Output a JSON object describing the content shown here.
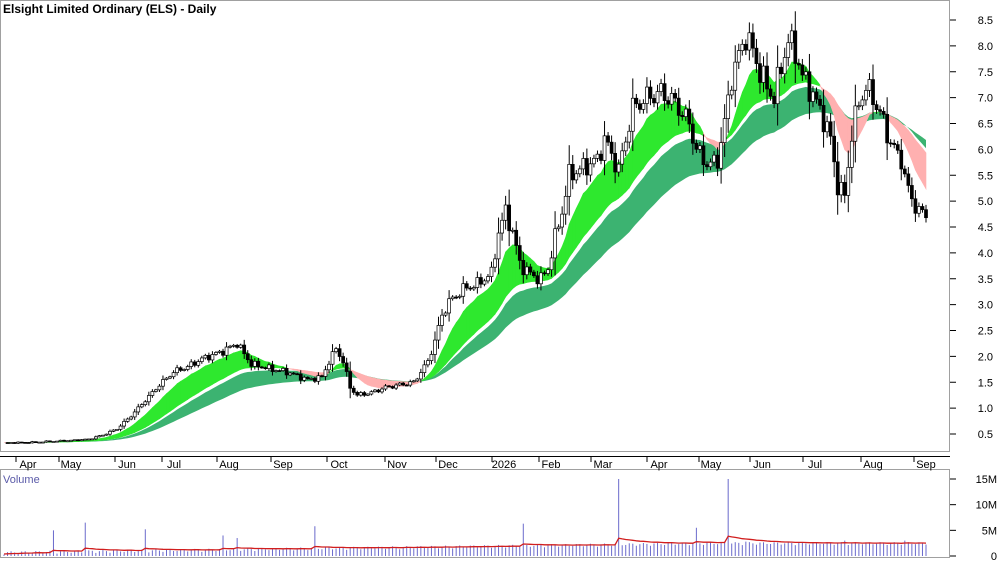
{
  "chart_data": [
    {
      "type": "candlestick",
      "title": "Elsight Limited Ordinary (ELS) - Daily",
      "y_ticks": [
        "0.5",
        "1.0",
        "1.5",
        "2.0",
        "2.5",
        "3.0",
        "3.5",
        "4.0",
        "4.5",
        "5.0",
        "5.5",
        "6.0",
        "6.5",
        "7.0",
        "7.5",
        "8.0",
        "8.5"
      ],
      "ylim": [
        0,
        8.8
      ],
      "x_labels": [
        "Apr",
        "May",
        "Jun",
        "Jul",
        "Aug",
        "Sep",
        "Oct",
        "Nov",
        "Dec",
        "2026",
        "Feb",
        "Mar",
        "Apr",
        "May",
        "Jun",
        "Jul",
        "Aug",
        "Sep"
      ],
      "price_path": [
        [
          0,
          0.33
        ],
        [
          8,
          0.34
        ],
        [
          14,
          0.36
        ],
        [
          20,
          0.38
        ],
        [
          24,
          0.4
        ],
        [
          28,
          0.48
        ],
        [
          32,
          0.6
        ],
        [
          36,
          0.85
        ],
        [
          40,
          1.15
        ],
        [
          44,
          1.45
        ],
        [
          48,
          1.7
        ],
        [
          52,
          1.8
        ],
        [
          56,
          1.95
        ],
        [
          60,
          2.05
        ],
        [
          62,
          2.1
        ],
        [
          66,
          2.25
        ],
        [
          70,
          1.85
        ],
        [
          76,
          1.75
        ],
        [
          80,
          1.7
        ],
        [
          84,
          1.6
        ],
        [
          86,
          1.55
        ],
        [
          90,
          1.6
        ],
        [
          92,
          1.9
        ],
        [
          94,
          2.15
        ],
        [
          96,
          1.9
        ],
        [
          98,
          1.4
        ],
        [
          100,
          1.25
        ],
        [
          104,
          1.3
        ],
        [
          108,
          1.4
        ],
        [
          112,
          1.45
        ],
        [
          116,
          1.5
        ],
        [
          118,
          1.7
        ],
        [
          120,
          1.9
        ],
        [
          122,
          2.3
        ],
        [
          124,
          2.8
        ],
        [
          126,
          3.05
        ],
        [
          130,
          3.3
        ],
        [
          134,
          3.4
        ],
        [
          138,
          3.6
        ],
        [
          140,
          4.4
        ],
        [
          142,
          4.8
        ],
        [
          144,
          4.4
        ],
        [
          146,
          3.8
        ],
        [
          148,
          3.65
        ],
        [
          150,
          3.55
        ],
        [
          152,
          3.5
        ],
        [
          154,
          3.7
        ],
        [
          156,
          4.3
        ],
        [
          158,
          4.8
        ],
        [
          160,
          5.5
        ],
        [
          164,
          5.65
        ],
        [
          168,
          5.8
        ],
        [
          170,
          6.2
        ],
        [
          172,
          5.9
        ],
        [
          174,
          5.6
        ],
        [
          176,
          6.2
        ],
        [
          178,
          6.8
        ],
        [
          182,
          7.0
        ],
        [
          186,
          7.1
        ],
        [
          190,
          6.9
        ],
        [
          192,
          6.7
        ],
        [
          194,
          6.5
        ],
        [
          196,
          6.0
        ],
        [
          198,
          5.8
        ],
        [
          200,
          5.7
        ],
        [
          202,
          5.8
        ],
        [
          204,
          6.5
        ],
        [
          206,
          7.4
        ],
        [
          208,
          7.8
        ],
        [
          210,
          8.2
        ],
        [
          212,
          7.9
        ],
        [
          214,
          7.5
        ],
        [
          216,
          7.2
        ],
        [
          218,
          7.0
        ],
        [
          220,
          7.6
        ],
        [
          222,
          8.1
        ],
        [
          224,
          7.9
        ],
        [
          226,
          7.4
        ],
        [
          228,
          7.2
        ],
        [
          230,
          6.9
        ],
        [
          232,
          6.6
        ],
        [
          234,
          6.2
        ],
        [
          236,
          5.3
        ],
        [
          238,
          5.1
        ],
        [
          240,
          6.3
        ],
        [
          242,
          6.9
        ],
        [
          244,
          7.2
        ],
        [
          246,
          7.0
        ],
        [
          248,
          6.7
        ],
        [
          250,
          6.3
        ],
        [
          252,
          6.0
        ],
        [
          254,
          5.8
        ],
        [
          256,
          5.2
        ],
        [
          258,
          4.9
        ],
        [
          260,
          4.75
        ]
      ],
      "volume_axis_ticks": [
        "15M",
        "10M",
        "5M",
        "0"
      ],
      "volume_ylim": [
        0,
        15
      ],
      "volume_label": "Volume"
    }
  ]
}
